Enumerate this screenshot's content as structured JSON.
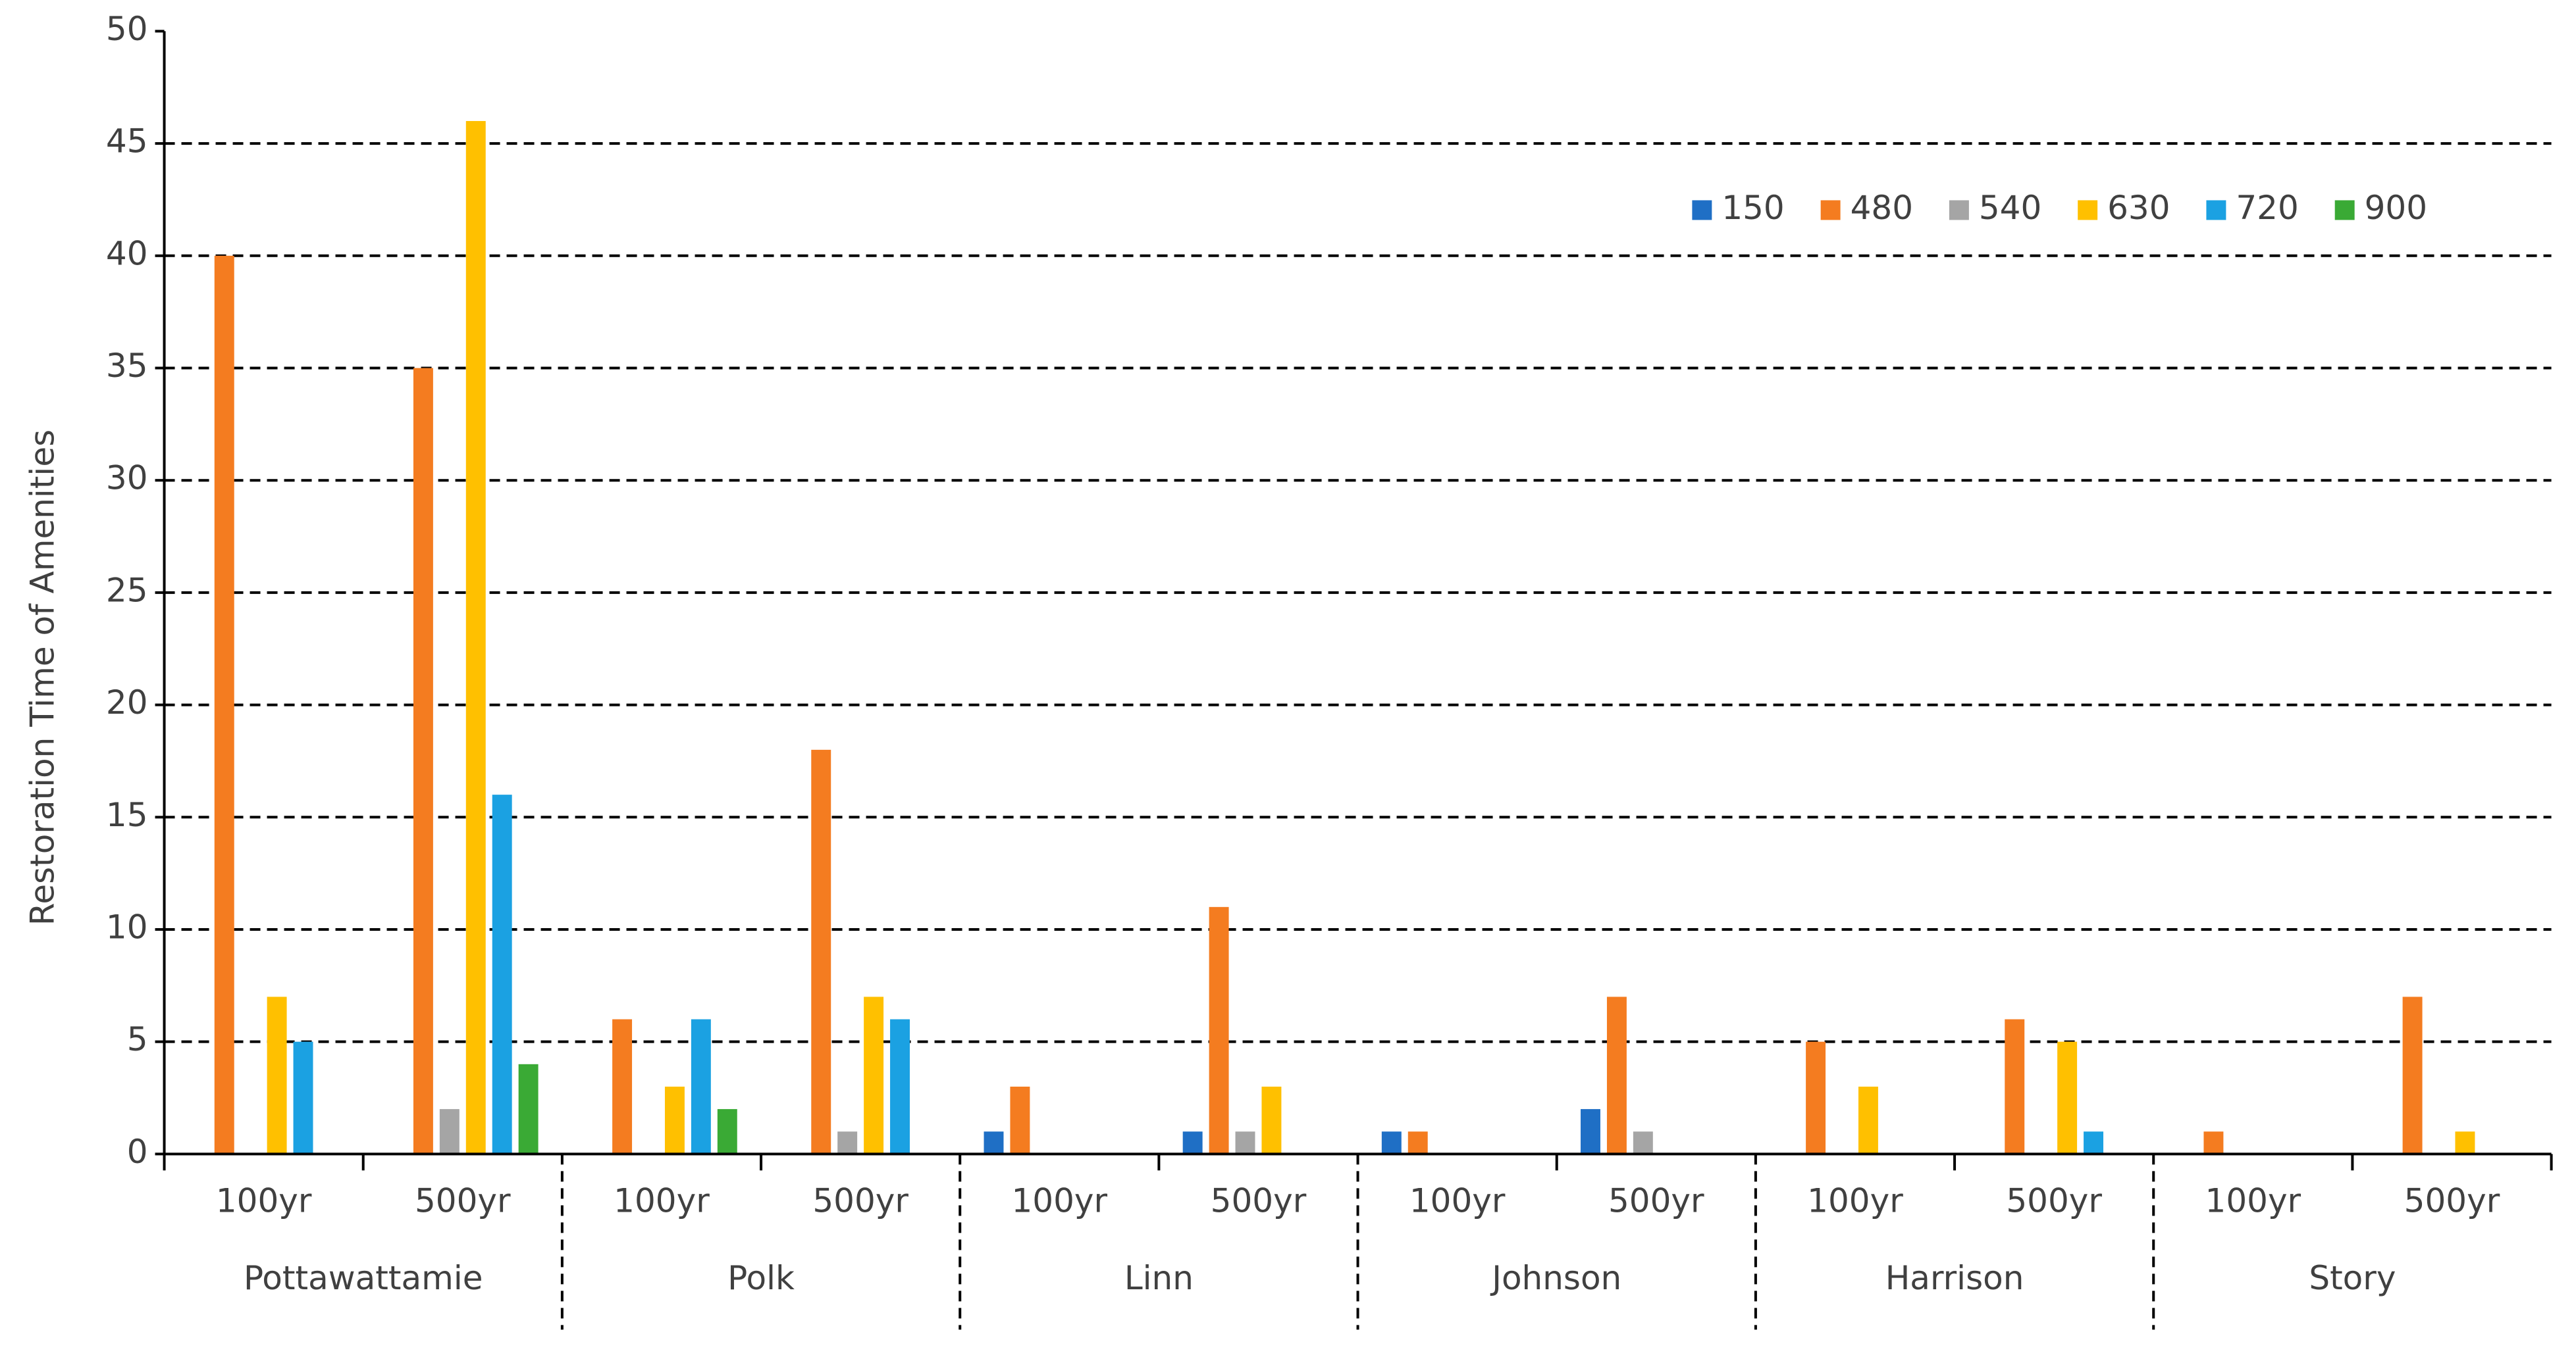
{
  "chart_data": {
    "type": "bar",
    "y_label": "Restoration Time of Amenities",
    "categories": [
      "100yr",
      "500yr",
      "100yr",
      "500yr",
      "100yr",
      "500yr",
      "100yr",
      "500yr",
      "100yr",
      "500yr",
      "100yr",
      "500yr"
    ],
    "groups": [
      "Pottawattamie",
      "Polk",
      "Linn",
      "Johnson",
      "Harrison",
      "Story"
    ],
    "series": [
      {
        "name": "150",
        "color": "#1f6fc5",
        "values": [
          0,
          0,
          0,
          0,
          1,
          1,
          1,
          2,
          0,
          0,
          0,
          0
        ]
      },
      {
        "name": "480",
        "color": "#f47c20",
        "values": [
          40,
          35,
          6,
          18,
          3,
          11,
          1,
          7,
          5,
          6,
          1,
          7
        ]
      },
      {
        "name": "540",
        "color": "#a5a5a5",
        "values": [
          0,
          2,
          0,
          1,
          0,
          1,
          0,
          1,
          0,
          0,
          0,
          0
        ]
      },
      {
        "name": "630",
        "color": "#ffc000",
        "values": [
          7,
          46,
          3,
          7,
          0,
          3,
          0,
          0,
          3,
          5,
          0,
          1
        ]
      },
      {
        "name": "720",
        "color": "#1ba1e2",
        "values": [
          5,
          16,
          6,
          6,
          0,
          0,
          0,
          0,
          0,
          1,
          0,
          0
        ]
      },
      {
        "name": "900",
        "color": "#3aaa35",
        "values": [
          0,
          4,
          2,
          0,
          0,
          0,
          0,
          0,
          0,
          0,
          0,
          0
        ]
      }
    ],
    "ylim": [
      0,
      50
    ],
    "yticks": [
      0,
      5,
      10,
      15,
      20,
      25,
      30,
      35,
      40,
      45,
      50
    ],
    "grid": true,
    "legend": "top-right"
  }
}
